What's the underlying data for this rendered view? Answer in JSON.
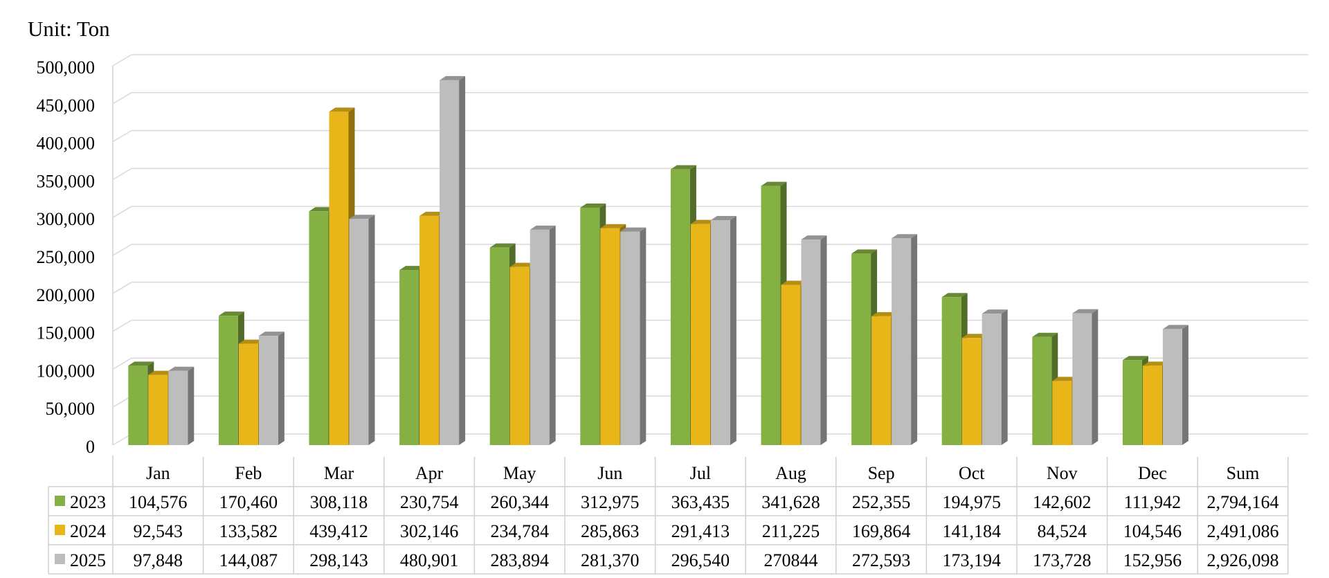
{
  "unit_label": "Unit: Ton",
  "colors": {
    "2023": "#84b044",
    "2024": "#e8b619",
    "2025": "#bdbdbd"
  },
  "chart_data": {
    "type": "bar",
    "title": "",
    "xlabel": "",
    "ylabel": "",
    "ylim": [
      0,
      500000
    ],
    "yticks": [
      "0",
      "50,000",
      "100,000",
      "150,000",
      "200,000",
      "250,000",
      "300,000",
      "350,000",
      "400,000",
      "450,000",
      "500,000"
    ],
    "grid": true,
    "style": "3D clustered columns with data table",
    "categories": [
      "Jan",
      "Feb",
      "Mar",
      "Apr",
      "May",
      "Jun",
      "Jul",
      "Aug",
      "Sep",
      "Oct",
      "Nov",
      "Dec"
    ],
    "table_columns": [
      "Jan",
      "Feb",
      "Mar",
      "Apr",
      "May",
      "Jun",
      "Jul",
      "Aug",
      "Sep",
      "Oct",
      "Nov",
      "Dec",
      "Sum"
    ],
    "series": [
      {
        "name": "2023",
        "values": [
          104576,
          170460,
          308118,
          230754,
          260344,
          312975,
          363435,
          341628,
          252355,
          194975,
          142602,
          111942
        ],
        "table_values": [
          "104,576",
          "170,460",
          "308,118",
          "230,754",
          "260,344",
          "312,975",
          "363,435",
          "341,628",
          "252,355",
          "194,975",
          "142,602",
          "111,942",
          "2,794,164"
        ]
      },
      {
        "name": "2024",
        "values": [
          92543,
          133582,
          439412,
          302146,
          234784,
          285863,
          291413,
          211225,
          169864,
          141184,
          84524,
          104546
        ],
        "table_values": [
          "92,543",
          "133,582",
          "439,412",
          "302,146",
          "234,784",
          "285,863",
          "291,413",
          "211,225",
          "169,864",
          "141,184",
          "84,524",
          "104,546",
          "2,491,086"
        ]
      },
      {
        "name": "2025",
        "values": [
          97848,
          144087,
          298143,
          480901,
          283894,
          281370,
          296540,
          270844,
          272593,
          173194,
          173728,
          152956
        ],
        "table_values": [
          "97,848",
          "144,087",
          "298,143",
          "480,901",
          "283,894",
          "281,370",
          "296,540",
          "270844",
          "272,593",
          "173,194",
          "173,728",
          "152,956",
          "2,926,098"
        ]
      }
    ]
  }
}
